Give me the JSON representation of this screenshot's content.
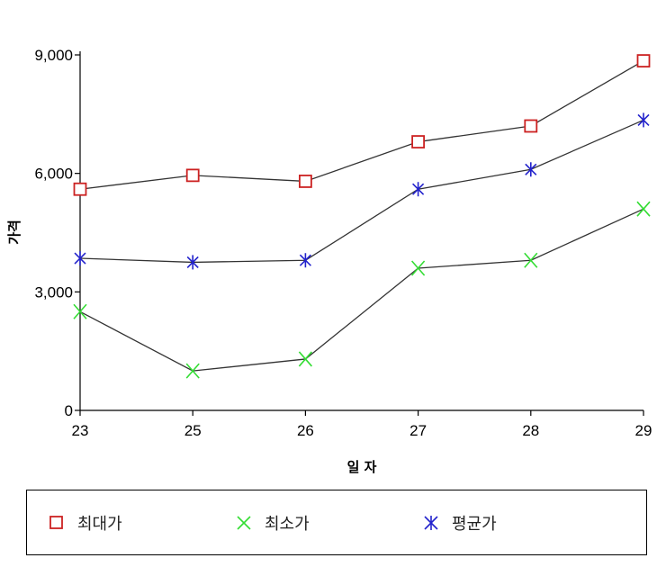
{
  "chart_data": {
    "type": "line",
    "categories": [
      "23",
      "25",
      "26",
      "27",
      "28",
      "29"
    ],
    "xlabel": "일 자",
    "ylabel": "가격",
    "ylim": [
      0,
      9000
    ],
    "yticks": [
      0,
      3000,
      6000,
      9000
    ],
    "ytick_labels": [
      "0",
      "3,000",
      "6,000",
      "9,000"
    ],
    "grid": false,
    "legend_position": "bottom",
    "series": [
      {
        "name": "최대가",
        "marker": "square",
        "color": "#cc2222",
        "values": [
          5600,
          5950,
          5800,
          6800,
          7200,
          8850
        ]
      },
      {
        "name": "최소가",
        "marker": "x",
        "color": "#33dd33",
        "values": [
          2500,
          1000,
          1300,
          3600,
          3800,
          5100
        ]
      },
      {
        "name": "평균가",
        "marker": "asterisk",
        "color": "#2222cc",
        "values": [
          3850,
          3750,
          3800,
          5600,
          6100,
          7350
        ]
      }
    ]
  }
}
